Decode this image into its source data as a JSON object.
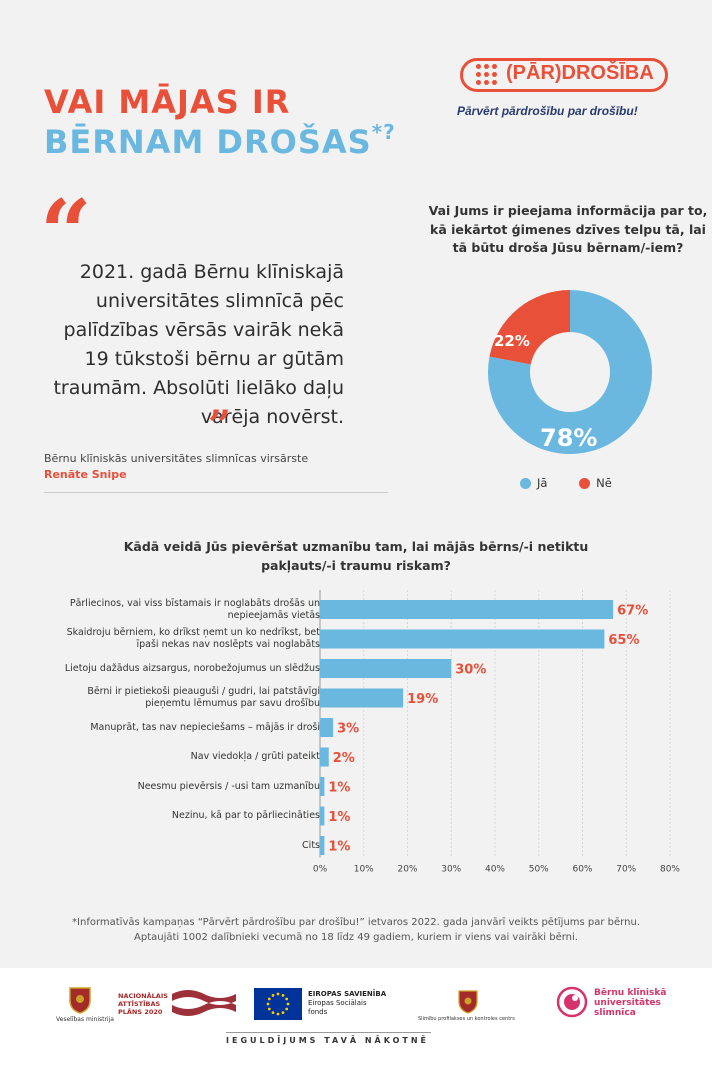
{
  "header": {
    "title_line1": "VAI MĀJAS IR",
    "title_line2": "BĒRNAM DROŠAS",
    "title_mark": "*?",
    "logo_prefix": "(PĀR)",
    "logo_suffix": "DROŠĪBA",
    "tagline": "Pārvērt pārdrošību par drošību!"
  },
  "quote": {
    "text": "2021. gadā Bērnu klīniskajā universitātes slimnīcā pēc palīdzības vērsās vairāk nekā 19 tūkstoši bērnu ar gūtām traumām. Absolūti lielāko daļu varēja novērst.",
    "author_role": "Bērnu klīniskās universitātes slimnīcas virsārste",
    "author_name": "Renāte Snipe"
  },
  "pie": {
    "question": "Vai Jums ir pieejama informācija par to, kā iekārtot ģimenes dzīves telpu tā, lai tā būtu droša Jūsu bērnam/-iem?",
    "legend_yes": "Jā",
    "legend_no": "Nē",
    "label_yes": "78%",
    "label_no": "22%"
  },
  "bar": {
    "question": "Kādā veidā Jūs pievēršat uzmanību tam, lai mājās bērns/-i netiktu pakļauts/-i traumu riskam?"
  },
  "chart_data": [
    {
      "type": "pie",
      "categories": [
        "Jā",
        "Nē"
      ],
      "values": [
        78,
        22
      ],
      "colors": [
        "#6ab7e0",
        "#e8503a"
      ],
      "legend": "bottom"
    },
    {
      "type": "bar",
      "orientation": "horizontal",
      "categories": [
        "Pārliecinos, vai viss bīstamais ir noglabāts drošās un nepieejamās vietās",
        "Skaidroju bērniem, ko drīkst ņemt un ko nedrīkst, bet īpaši nekas nav noslēpts vai noglabāts",
        "Lietoju dažādus aizsargus, norobežojumus un slēdžus",
        "Bērni ir pietiekoši pieauguši / gudri, lai patstāvīgi pieņemtu lēmumus par savu drošību",
        "Manuprāt, tas nav nepieciešams – mājās ir droši",
        "Nav viedokļa / grūti pateikt",
        "Neesmu pievērsis / -usi tam uzmanību",
        "Nezinu, kā par to pārliecināties",
        "Cits"
      ],
      "values": [
        67,
        65,
        30,
        19,
        3,
        2,
        1,
        1,
        1
      ],
      "value_labels": [
        "67%",
        "65%",
        "30%",
        "19%",
        "3%",
        "2%",
        "1%",
        "1%",
        "1%"
      ],
      "xticks": [
        "0%",
        "10%",
        "20%",
        "30%",
        "40%",
        "50%",
        "60%",
        "70%",
        "80%"
      ],
      "xlim": [
        0,
        80
      ],
      "bar_color": "#6ab7e0",
      "label_color": "#e8503a",
      "grid": true
    }
  ],
  "footnote": {
    "line1": "*Informatīvās kampaņas “Pārvērt pārdrošību par drošību!” ietvaros 2022. gada janvārī veikts pētījums par bērnu.",
    "line2": "Aptaujāti 1002 dalībnieki vecumā no 18 līdz 49 gadiem, kuriem ir viens vai vairāki bērni."
  },
  "footer": {
    "ministry": "Veselības ministrija",
    "nap_line1": "NACIONĀLAIS",
    "nap_line2": "ATTĪSTĪBAS",
    "nap_line3": "PLĀNS 2020",
    "eu_title": "EIROPAS SAVIENĪBA",
    "eu_line1": "Eiropas Sociālais",
    "eu_line2": "fonds",
    "spkc": "Slimību profilakses un kontroles centrs",
    "bkus_line1": "Bērnu klīniskā",
    "bkus_line2": "universitātes",
    "bkus_line3": "slimnīca",
    "slogan": "IEGULDĪJUMS TAVĀ NĀKOTNĒ"
  }
}
